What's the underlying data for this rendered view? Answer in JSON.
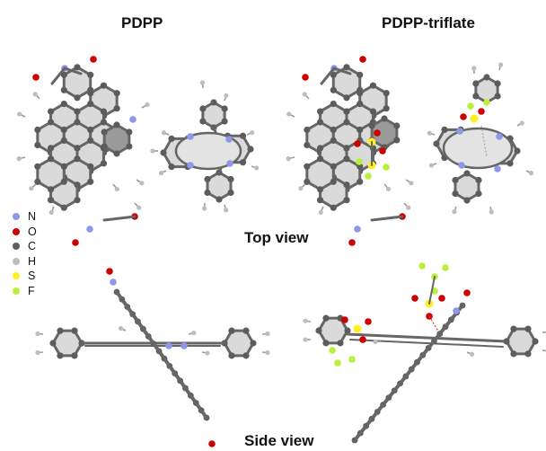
{
  "titles": {
    "left": "PDPP",
    "right": "PDPP-triflate"
  },
  "views": {
    "top": "Top view",
    "side": "Side view"
  },
  "legend": [
    {
      "label": "N",
      "color": "#8e97e8"
    },
    {
      "label": "O",
      "color": "#cc0000"
    },
    {
      "label": "C",
      "color": "#5c5c5c"
    },
    {
      "label": "H",
      "color": "#bdbdbd"
    },
    {
      "label": "S",
      "color": "#ffee22"
    },
    {
      "label": "F",
      "color": "#b9f03c"
    }
  ],
  "colors": {
    "ring_fill": "#dadada",
    "bond": "#666666",
    "carbon": "#5c5c5c",
    "hydrogen": "#bdbdbd",
    "center_fill": "#9a9a9a"
  }
}
